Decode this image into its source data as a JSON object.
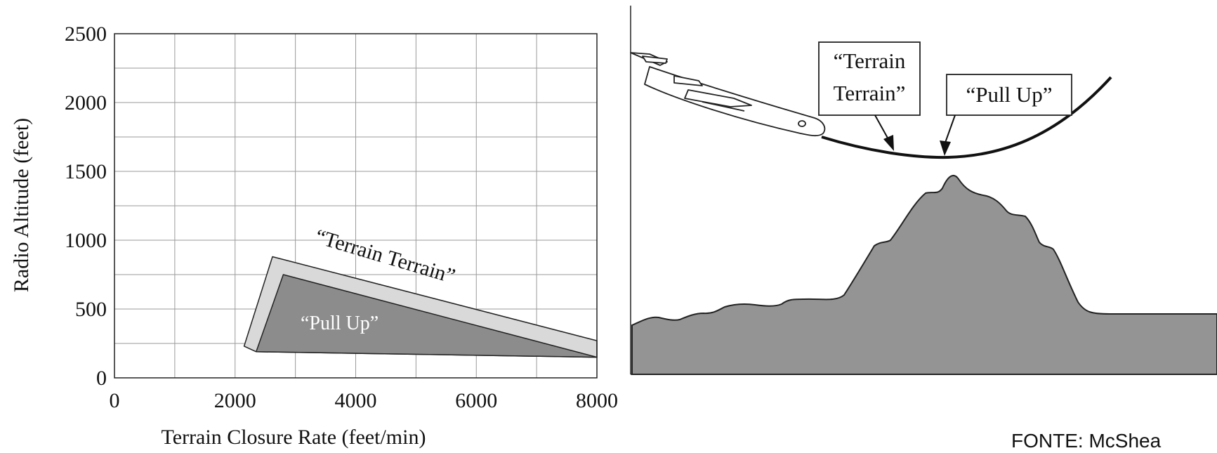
{
  "chart_data": {
    "type": "area",
    "xlabel": "Terrain Closure Rate (feet/min)",
    "ylabel": "Radio Altitude (feet)",
    "xlim": [
      0,
      8000
    ],
    "ylim": [
      0,
      2500
    ],
    "x_ticks": [
      "0",
      "2000",
      "4000",
      "6000",
      "8000"
    ],
    "y_ticks": [
      "0",
      "500",
      "1000",
      "1500",
      "2000",
      "2500"
    ],
    "grid": true,
    "regions": [
      {
        "name": "“Terrain Terrain”",
        "color": "#d9d9d9",
        "points": [
          [
            2150,
            230
          ],
          [
            2620,
            880
          ],
          [
            8000,
            270
          ],
          [
            8000,
            150
          ],
          [
            2350,
            190
          ]
        ]
      },
      {
        "name": "“Pull Up”",
        "color": "#8c8c8c",
        "points": [
          [
            2350,
            190
          ],
          [
            2800,
            750
          ],
          [
            8000,
            150
          ]
        ]
      }
    ]
  },
  "scenario": {
    "label_terrain_line1": "“Terrain",
    "label_terrain_line2": "Terrain”",
    "label_pullup": "“Pull Up”",
    "terrain_color": "#949494"
  },
  "source": "FONTE: McShea"
}
